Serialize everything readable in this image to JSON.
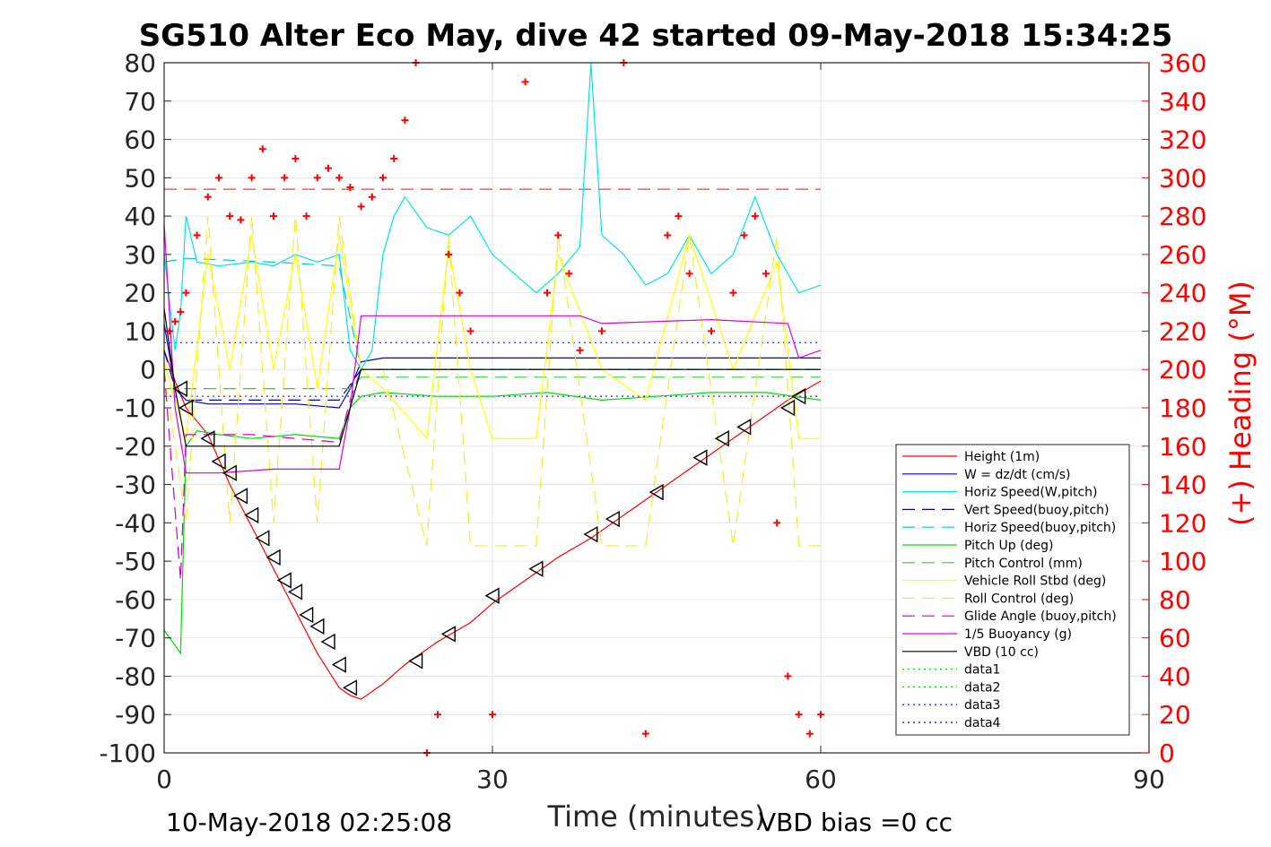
{
  "chart_data": {
    "type": "line",
    "title": "SG510 Alter Eco May, dive 42 started 09-May-2018 15:34:25",
    "xlabel": "Time (minutes)",
    "ylabel": "",
    "y2label": "(+) Heading (°M)",
    "xlim": [
      0,
      90
    ],
    "ylim": [
      -100,
      80
    ],
    "y2lim": [
      0,
      360
    ],
    "xticks": [
      "0",
      "30",
      "60",
      "90"
    ],
    "yticks": [
      "80",
      "70",
      "60",
      "50",
      "40",
      "30",
      "20",
      "10",
      "0",
      "-10",
      "-20",
      "-30",
      "-40",
      "-50",
      "-60",
      "-70",
      "-80",
      "-90",
      "-100"
    ],
    "y2ticks": [
      "360",
      "340",
      "320",
      "300",
      "280",
      "260",
      "240",
      "220",
      "200",
      "180",
      "160",
      "140",
      "120",
      "100",
      "80",
      "60",
      "40",
      "20",
      "0"
    ],
    "grid": true,
    "legend_position": "bottom-right",
    "footer_left": "10-May-2018 02:25:08",
    "footer_right": "VBD bias =0 cc",
    "colors": {
      "height": "#ff0000",
      "w": "#0000cc",
      "horiz": "#00e5e5",
      "vert_buoy": "#00008b",
      "horiz_buoy": "#00cccc",
      "pitch": "#00dd00",
      "pitch_ctrl": "#33cc33",
      "roll": "#ffff00",
      "roll_ctrl": "#eeee33",
      "glide": "#cc00cc",
      "buoy": "#dd00dd",
      "vbd": "#000000",
      "heading": "#ff0000"
    },
    "series": [
      {
        "name": "Height (1m)",
        "key": "height",
        "style": "solid",
        "axis": "left",
        "x": [
          0,
          1,
          2,
          4,
          6,
          8,
          10,
          12,
          14,
          16,
          17,
          18,
          20,
          22,
          25,
          28,
          30,
          33,
          36,
          39,
          42,
          45,
          48,
          51,
          54,
          57,
          60
        ],
        "y": [
          5,
          -3,
          -10,
          -17,
          -30,
          -41,
          -52,
          -63,
          -74,
          -83,
          -85,
          -86,
          -82,
          -77,
          -71,
          -66,
          -61,
          -55,
          -49,
          -44,
          -38,
          -32,
          -26,
          -20,
          -14,
          -8,
          -3
        ]
      },
      {
        "name": "W = dz/dt (cm/s)",
        "key": "w",
        "style": "solid",
        "axis": "left",
        "x": [
          0,
          1,
          2,
          4,
          8,
          12,
          16,
          17,
          18,
          20,
          30,
          40,
          50,
          55,
          57,
          60
        ],
        "y": [
          12,
          -5,
          -8,
          -9,
          -9,
          -9,
          -10,
          -5,
          2,
          3,
          3,
          3,
          3,
          3,
          3,
          3
        ]
      },
      {
        "name": "Horiz Speed(W,pitch)",
        "key": "horiz",
        "style": "solid",
        "axis": "left",
        "x": [
          0,
          1,
          1.5,
          2,
          3,
          5,
          8,
          10,
          12,
          14,
          16,
          17,
          18,
          19,
          20,
          21,
          22,
          24,
          26,
          28,
          30,
          32,
          34,
          36,
          38,
          39,
          40,
          42,
          44,
          46,
          48,
          50,
          52,
          54,
          56,
          58,
          60
        ],
        "y": [
          30,
          5,
          15,
          40,
          28,
          27,
          28,
          27,
          30,
          28,
          30,
          5,
          0,
          5,
          30,
          40,
          45,
          37,
          35,
          40,
          30,
          25,
          20,
          25,
          32,
          80,
          35,
          30,
          22,
          25,
          35,
          25,
          30,
          45,
          30,
          20,
          22
        ]
      },
      {
        "name": "Vert Speed(buoy,pitch)",
        "key": "vert_buoy",
        "style": "dash",
        "axis": "left",
        "x": [
          0,
          1,
          2,
          16,
          17,
          18,
          60
        ],
        "y": [
          5,
          -5,
          -8,
          -8,
          -4,
          0,
          0
        ]
      },
      {
        "name": "Horiz Speed(buoy,pitch)",
        "key": "horiz_buoy",
        "style": "dash",
        "axis": "left",
        "x": [
          0,
          2,
          10,
          16,
          18,
          60
        ],
        "y": [
          28,
          29,
          28,
          27,
          0,
          0
        ]
      },
      {
        "name": "Pitch Up (deg)",
        "key": "pitch",
        "style": "solid",
        "axis": "left",
        "x": [
          0,
          1,
          1.5,
          2,
          3,
          5,
          8,
          12,
          16,
          17,
          18,
          20,
          25,
          30,
          35,
          40,
          45,
          50,
          55,
          60
        ],
        "y": [
          -68,
          -72,
          -74,
          -20,
          -16,
          -17,
          -18,
          -17,
          -18,
          -10,
          -7,
          -6,
          -7,
          -7,
          -6,
          -8,
          -7,
          -6,
          -6,
          -8
        ]
      },
      {
        "name": "Pitch Control (mm)",
        "key": "pitch_ctrl",
        "style": "dash",
        "axis": "left",
        "x": [
          0,
          2,
          17,
          18,
          60
        ],
        "y": [
          -5,
          -5,
          -5,
          -2,
          -2
        ]
      },
      {
        "name": "Vehicle Roll Stbd (deg)",
        "key": "roll",
        "style": "solid",
        "axis": "left",
        "x": [
          0,
          2,
          4,
          6,
          8,
          10,
          12,
          14,
          16,
          18,
          20,
          24,
          26,
          28,
          30,
          34,
          36,
          40,
          44,
          48,
          52,
          56,
          58,
          60
        ],
        "y": [
          2,
          -18,
          30,
          0,
          35,
          0,
          30,
          -5,
          35,
          0,
          -5,
          -18,
          32,
          0,
          -18,
          -18,
          30,
          0,
          -8,
          35,
          0,
          28,
          -18,
          -18
        ]
      },
      {
        "name": "Roll Control (deg)",
        "key": "roll_ctrl",
        "style": "dash",
        "axis": "left",
        "x": [
          0,
          2,
          4,
          6,
          8,
          10,
          12,
          14,
          16,
          18,
          20,
          24,
          26,
          28,
          30,
          34,
          36,
          40,
          44,
          48,
          52,
          56,
          58,
          60
        ],
        "y": [
          0,
          -40,
          40,
          -40,
          40,
          -40,
          40,
          -40,
          40,
          0,
          0,
          -46,
          35,
          -46,
          -46,
          -46,
          35,
          -46,
          -46,
          35,
          -46,
          35,
          -46,
          -46
        ]
      },
      {
        "name": "Glide Angle (buoy,pitch)",
        "key": "glide",
        "style": "dash",
        "axis": "left",
        "x": [
          0,
          1.5,
          2,
          8,
          16,
          17,
          18
        ],
        "y": [
          0,
          -55,
          -17,
          -17,
          -19,
          -8,
          0
        ]
      },
      {
        "name": "1/5 Buoyancy (g)",
        "key": "buoy",
        "style": "solid",
        "axis": "left",
        "x": [
          0,
          1,
          2,
          5,
          10,
          16,
          17,
          18,
          30,
          38,
          40,
          50,
          57,
          58,
          60
        ],
        "y": [
          38,
          -10,
          -27,
          -27,
          -26,
          -26,
          -10,
          14,
          14,
          14,
          12,
          13,
          12,
          3,
          5
        ]
      },
      {
        "name": "VBD (10 cc)",
        "key": "vbd",
        "style": "solid",
        "axis": "left",
        "x": [
          0,
          1,
          2,
          16,
          17,
          18,
          60
        ],
        "y": [
          16,
          -5,
          -20,
          -20,
          -10,
          0,
          0
        ]
      },
      {
        "name": "data1",
        "key": "data1",
        "style": "dot",
        "axis": "left",
        "x": [],
        "y": []
      },
      {
        "name": "data2",
        "key": "data2",
        "style": "dot",
        "axis": "left",
        "x": [],
        "y": []
      },
      {
        "name": "data3",
        "key": "data3",
        "style": "dot",
        "axis": "left",
        "x": [],
        "y": []
      },
      {
        "name": "data4",
        "key": "data4",
        "style": "dot",
        "axis": "left",
        "x": [],
        "y": []
      }
    ],
    "reference_lines": [
      {
        "key": "heading",
        "axis": "left",
        "y": 47,
        "x": [
          0,
          60
        ],
        "style": "dash"
      },
      {
        "key": "data3",
        "axis": "left",
        "y": 7,
        "x": [
          0,
          60
        ],
        "style": "dot"
      },
      {
        "key": "data4",
        "axis": "left",
        "y": -7,
        "x": [
          0,
          60
        ],
        "style": "dot"
      }
    ],
    "heading_points": {
      "axis": "right",
      "x": [
        0.5,
        1,
        1.5,
        2,
        3,
        4,
        5,
        6,
        7,
        8,
        9,
        10,
        11,
        12,
        13,
        14,
        15,
        16,
        17,
        18,
        19,
        20,
        21,
        22,
        23,
        24,
        25,
        26,
        27,
        28,
        30,
        33,
        35,
        36,
        37,
        38,
        40,
        42,
        44,
        46,
        47,
        48,
        50,
        52,
        53,
        54,
        55,
        56,
        57,
        58,
        59,
        60
      ],
      "y": [
        220,
        225,
        230,
        240,
        270,
        290,
        300,
        280,
        278,
        300,
        315,
        280,
        300,
        310,
        280,
        300,
        305,
        300,
        295,
        285,
        290,
        300,
        310,
        330,
        360,
        0,
        20,
        260,
        240,
        220,
        20,
        350,
        240,
        270,
        250,
        210,
        220,
        360,
        10,
        270,
        280,
        250,
        220,
        240,
        270,
        280,
        250,
        120,
        40,
        20,
        10,
        20
      ]
    },
    "vbd_markers": {
      "axis": "left",
      "x": [
        1.5,
        2,
        4,
        5,
        6,
        7,
        8,
        9,
        10,
        11,
        12,
        13,
        14,
        15,
        16,
        17,
        23,
        26,
        30,
        34,
        39,
        41,
        45,
        49,
        51,
        53,
        57,
        58
      ],
      "y": [
        -5,
        -10,
        -18,
        -24,
        -27,
        -33,
        -38,
        -44,
        -49,
        -55,
        -58,
        -64,
        -67,
        -71,
        -77,
        -83,
        -76,
        -69,
        -59,
        -52,
        -43,
        -39,
        -32,
        -23,
        -18,
        -15,
        -10,
        -7
      ]
    }
  }
}
